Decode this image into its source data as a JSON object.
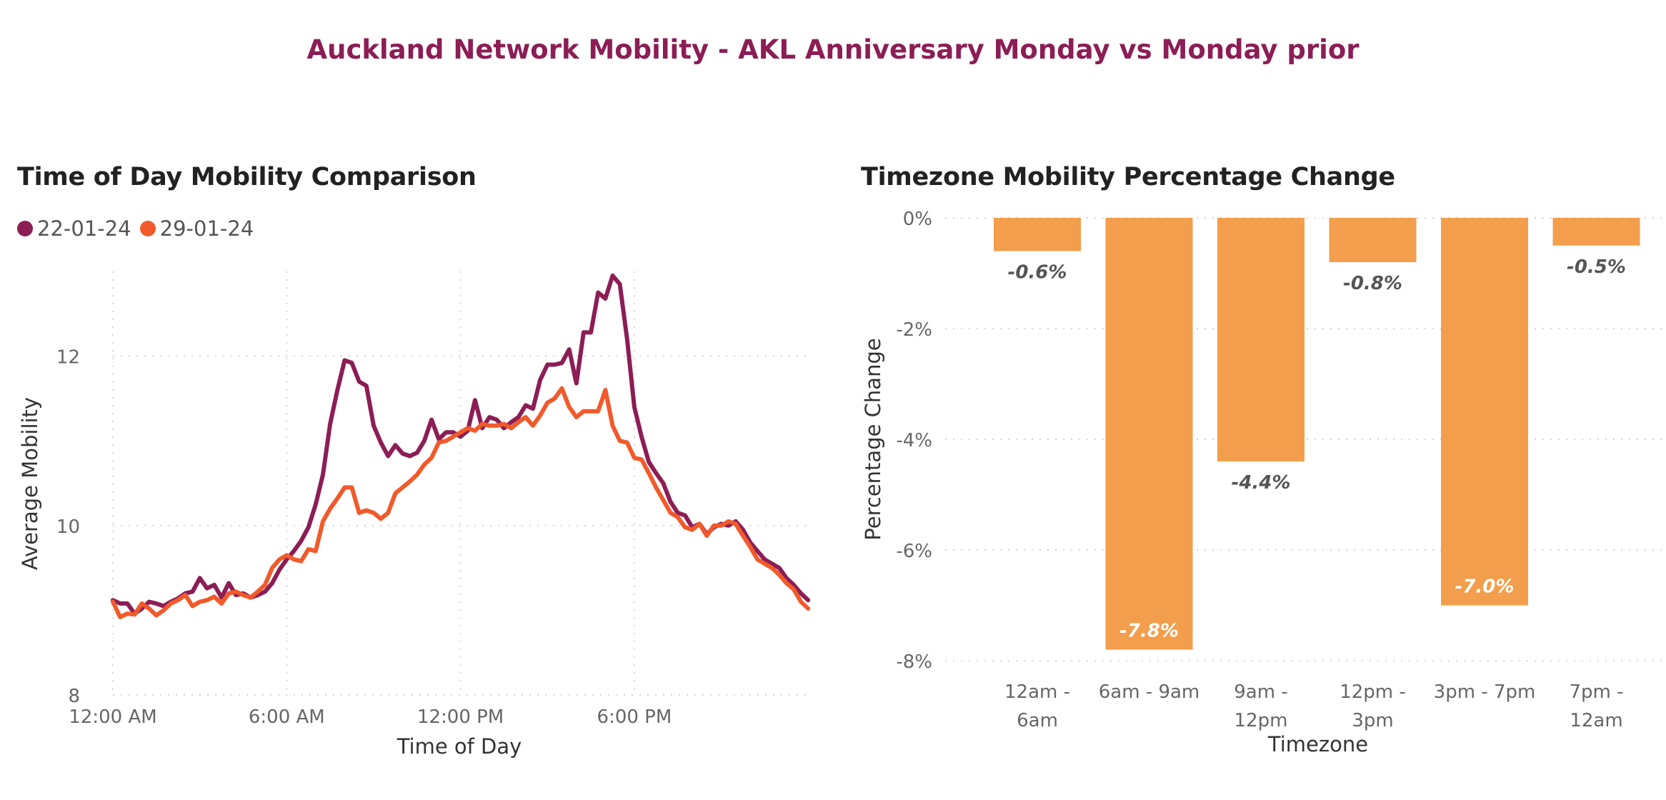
{
  "page_title": "Auckland Network Mobility - AKL Anniversary Monday vs Monday prior",
  "chart_data": [
    {
      "type": "line",
      "title": "Time of Day Mobility Comparison",
      "xlabel": "Time of Day",
      "ylabel": "Average Mobility",
      "ylim": [
        8,
        13
      ],
      "yticks": [
        8,
        10,
        12
      ],
      "xlim_hours": [
        0,
        24
      ],
      "xticks": [
        {
          "hour": 0,
          "label": "12:00 AM"
        },
        {
          "hour": 6,
          "label": "6:00 AM"
        },
        {
          "hour": 12,
          "label": "12:00 PM"
        },
        {
          "hour": 18,
          "label": "6:00 PM"
        }
      ],
      "interval_minutes": 15,
      "legend_position": "top-left",
      "series": [
        {
          "name": "22-01-24",
          "color": "#8c1d55",
          "values": [
            9.12,
            9.08,
            9.08,
            8.96,
            9.02,
            9.1,
            9.08,
            9.05,
            9.1,
            9.14,
            9.2,
            9.22,
            9.38,
            9.26,
            9.3,
            9.15,
            9.32,
            9.18,
            9.2,
            9.15,
            9.18,
            9.22,
            9.32,
            9.48,
            9.6,
            9.7,
            9.82,
            9.98,
            10.25,
            10.6,
            11.2,
            11.6,
            11.95,
            11.92,
            11.7,
            11.65,
            11.18,
            10.98,
            10.82,
            10.95,
            10.85,
            10.82,
            10.86,
            11.0,
            11.25,
            11.02,
            11.1,
            11.1,
            11.05,
            11.12,
            11.48,
            11.15,
            11.28,
            11.25,
            11.15,
            11.22,
            11.28,
            11.42,
            11.38,
            11.72,
            11.9,
            11.9,
            11.92,
            12.08,
            11.68,
            12.28,
            12.28,
            12.75,
            12.68,
            12.95,
            12.85,
            12.2,
            11.4,
            11.05,
            10.75,
            10.62,
            10.5,
            10.28,
            10.15,
            10.12,
            9.98,
            10.02,
            9.9,
            9.98,
            10.02,
            10.0,
            10.05,
            9.95,
            9.8,
            9.7,
            9.6,
            9.55,
            9.5,
            9.38,
            9.3,
            9.2,
            9.12
          ]
        },
        {
          "name": "29-01-24",
          "color": "#f15a2b",
          "values": [
            9.1,
            8.92,
            8.96,
            8.95,
            9.08,
            9.02,
            8.94,
            9.0,
            9.08,
            9.12,
            9.18,
            9.05,
            9.1,
            9.12,
            9.16,
            9.08,
            9.2,
            9.22,
            9.18,
            9.15,
            9.22,
            9.3,
            9.5,
            9.6,
            9.65,
            9.6,
            9.58,
            9.72,
            9.7,
            10.05,
            10.2,
            10.32,
            10.45,
            10.45,
            10.15,
            10.18,
            10.15,
            10.08,
            10.15,
            10.38,
            10.45,
            10.52,
            10.6,
            10.72,
            10.8,
            10.98,
            11.0,
            11.05,
            11.1,
            11.15,
            11.12,
            11.2,
            11.18,
            11.18,
            11.2,
            11.15,
            11.22,
            11.28,
            11.18,
            11.3,
            11.45,
            11.5,
            11.62,
            11.4,
            11.28,
            11.35,
            11.35,
            11.35,
            11.6,
            11.18,
            11.0,
            10.98,
            10.8,
            10.78,
            10.62,
            10.45,
            10.3,
            10.15,
            10.1,
            9.98,
            9.95,
            10.02,
            9.88,
            10.0,
            10.0,
            10.05,
            10.02,
            9.88,
            9.75,
            9.6,
            9.55,
            9.5,
            9.42,
            9.32,
            9.25,
            9.1,
            9.02
          ]
        }
      ]
    },
    {
      "type": "bar",
      "title": "Timezone Mobility Percentage Change",
      "xlabel": "Timezone",
      "ylabel": "Percentage Change",
      "ylim": [
        -8,
        0
      ],
      "yticks": [
        "0%",
        "-2%",
        "-4%",
        "-6%",
        "-8%"
      ],
      "ytick_values": [
        0,
        -2,
        -4,
        -6,
        -8
      ],
      "bar_color": "#f29e4c",
      "categories": [
        [
          "12am -",
          "6am"
        ],
        [
          "6am - 9am"
        ],
        [
          "9am -",
          "12pm"
        ],
        [
          "12pm -",
          "3pm"
        ],
        [
          "3pm - 7pm"
        ],
        [
          "7pm -",
          "12am"
        ]
      ],
      "values": [
        -0.6,
        -7.8,
        -4.4,
        -0.8,
        -7.0,
        -0.5
      ],
      "data_labels": [
        "-0.6%",
        "-7.8%",
        "-4.4%",
        "-0.8%",
        "-7.0%",
        "-0.5%"
      ]
    }
  ]
}
